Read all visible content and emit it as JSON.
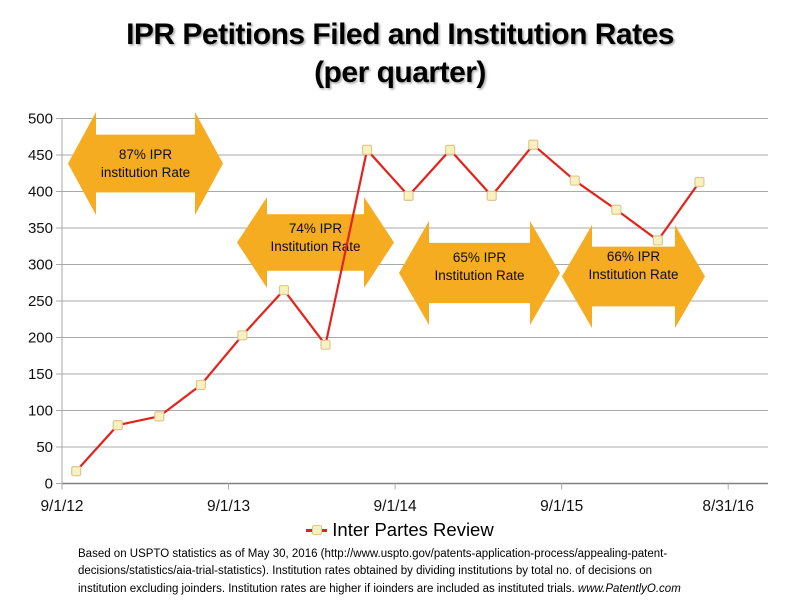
{
  "title": {
    "line1": "IPR Petitions Filed and Institution Rates",
    "line2": "(per quarter)"
  },
  "legend": {
    "label": "Inter Partes Review"
  },
  "footer": {
    "lines": [
      "Based on USPTO statistics as of May 30, 2016 (http://www.uspto.gov/patents-application-process/appealing-patent-",
      "decisions/statistics/aia-trial-statistics).  Institution rates obtained by dividing institutions  by total no. of decisions on",
      "institution excluding joinders.  Institution rates are higher if ioinders are included as instituted trials."
    ],
    "site": "www.PatentlyO.com"
  },
  "chart_data": {
    "type": "line",
    "title": "IPR Petitions Filed and Institution Rates (per quarter)",
    "x_axis": {
      "tick_labels": [
        "9/1/12",
        "9/1/13",
        "9/1/14",
        "9/1/15",
        "8/31/16"
      ],
      "points_per_tick": 4,
      "total_points": 16
    },
    "y_axis": {
      "min": 0,
      "max": 500,
      "step": 50
    },
    "grid": true,
    "legend_position": "bottom",
    "series": [
      {
        "name": "Inter Partes Review",
        "marker": "square",
        "values": [
          17,
          80,
          92,
          135,
          203,
          265,
          190,
          457,
          394,
          457,
          394,
          464,
          415,
          375,
          333,
          413
        ]
      }
    ],
    "annotations": [
      {
        "label": "87% IPR institution Rate",
        "lines": [
          "87% IPR",
          "institution Rate"
        ]
      },
      {
        "label": "74% IPR Institution Rate",
        "lines": [
          "74% IPR",
          "Institution Rate"
        ]
      },
      {
        "label": "65% IPR Institution Rate",
        "lines": [
          "65% IPR",
          "Institution Rate"
        ]
      },
      {
        "label": "66% IPR Institution Rate",
        "lines": [
          "66% IPR",
          "Institution Rate"
        ]
      }
    ],
    "colors": {
      "annotation_arrow": "#f5ac20",
      "line": "#e3231b",
      "marker_fill": "#fbf0c1",
      "marker_stroke": "#dcc98d",
      "gridline": "#a9a9a9",
      "axis": "#808080"
    }
  }
}
